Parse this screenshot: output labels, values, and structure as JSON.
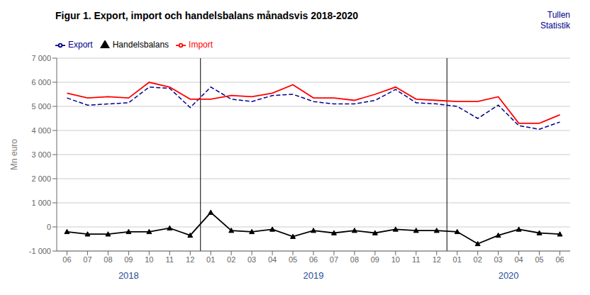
{
  "chart_data": {
    "type": "line",
    "title": "Figur 1. Export, import och handelsbalans månadsvis 2018-2020",
    "ylabel": "Mn euro",
    "categories": [
      "06",
      "07",
      "08",
      "09",
      "10",
      "11",
      "12",
      "01",
      "02",
      "03",
      "04",
      "05",
      "06",
      "07",
      "08",
      "09",
      "10",
      "11",
      "12",
      "01",
      "02",
      "03",
      "04",
      "05",
      "06"
    ],
    "series": [
      {
        "name": "Export",
        "color": "#00008B",
        "line_style": "dashed",
        "values": [
          5350,
          5050,
          5100,
          5150,
          5800,
          5750,
          4950,
          5800,
          5300,
          5200,
          5450,
          5500,
          5200,
          5100,
          5100,
          5250,
          5700,
          5150,
          5100,
          5000,
          4500,
          5050,
          4200,
          4050,
          4350
        ]
      },
      {
        "name": "Import",
        "color": "#FF0000",
        "line_style": "solid",
        "values": [
          5550,
          5350,
          5400,
          5350,
          6000,
          5800,
          5300,
          5300,
          5450,
          5400,
          5550,
          5900,
          5350,
          5350,
          5250,
          5500,
          5800,
          5300,
          5250,
          5200,
          5200,
          5400,
          4300,
          4300,
          4650
        ]
      },
      {
        "name": "Handelsbalans",
        "color": "#000000",
        "line_style": "solid",
        "marker": "triangle",
        "values": [
          -200,
          -300,
          -300,
          -200,
          -200,
          -50,
          -350,
          600,
          -150,
          -200,
          -100,
          -400,
          -150,
          -250,
          -150,
          -250,
          -100,
          -150,
          -150,
          -200,
          -700,
          -350,
          -100,
          -250,
          -300
        ]
      }
    ],
    "ylim": [
      -1000,
      7000
    ],
    "yticks": [
      {
        "value": -1000,
        "label": "-1 000"
      },
      0,
      {
        "value": 1000,
        "label": "1 000"
      },
      {
        "value": 2000,
        "label": "2 000"
      },
      {
        "value": 3000,
        "label": "3 000"
      },
      {
        "value": 4000,
        "label": "4 000"
      },
      {
        "value": 5000,
        "label": "5 000"
      },
      {
        "value": 6000,
        "label": "6 000"
      },
      {
        "value": 7000,
        "label": "7 000"
      }
    ],
    "grid": true,
    "legend": "upper left",
    "annotations": [
      {
        "text": "Tullen",
        "color": "#00008B"
      },
      {
        "text": "Statistik",
        "color": "#00008B"
      },
      {
        "text": "2018",
        "x": 3,
        "color": "#1F4E96"
      },
      {
        "text": "2019",
        "x": 12,
        "color": "#1F4E96"
      },
      {
        "text": "2020",
        "x": 21.5,
        "color": "#1F4E96"
      }
    ],
    "separators": [
      6.5,
      18.5
    ]
  }
}
